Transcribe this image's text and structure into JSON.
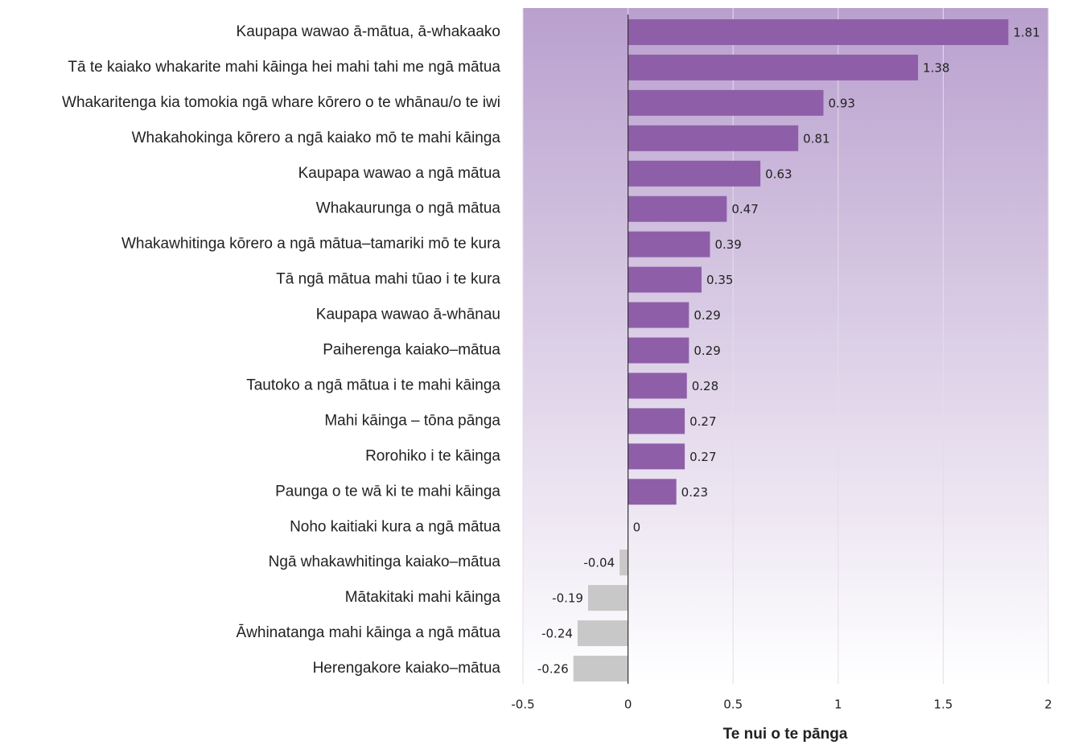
{
  "chart_data": {
    "type": "bar",
    "orientation": "horizontal",
    "x_label": "Te nui o te pānga",
    "categories": [
      "Kaupapa wawao ā-mātua, ā-whakaako",
      "Tā te kaiako whakarite mahi kāinga hei mahi tahi me ngā mātua",
      "Whakaritenga kia tomokia ngā whare kōrero o te whānau/o te iwi",
      "Whakahokinga kōrero a ngā kaiako mō te mahi kāinga",
      "Kaupapa wawao a ngā mātua",
      "Whakaurunga o ngā mātua",
      "Whakawhitinga kōrero a ngā mātua–tamariki mō te kura",
      "Tā ngā mātua mahi tūao i te kura",
      "Kaupapa wawao ā-whānau",
      "Paiherenga kaiako–mātua",
      "Tautoko a ngā mātua i te mahi kāinga",
      "Mahi kāinga – tōna pānga",
      "Rorohiko i te kāinga",
      "Paunga o te wā ki te mahi kāinga",
      "Noho kaitiaki kura a ngā mātua",
      "Ngā whakawhitinga kaiako–mātua",
      "Mātakitaki mahi kāinga",
      "Āwhinatanga mahi kāinga a ngā mātua",
      "Herengakore kaiako–mātua"
    ],
    "values": [
      1.81,
      1.38,
      0.93,
      0.81,
      0.63,
      0.47,
      0.39,
      0.35,
      0.29,
      0.29,
      0.28,
      0.27,
      0.27,
      0.23,
      0,
      -0.04,
      -0.19,
      -0.24,
      -0.26
    ],
    "color": "#8e5fa8",
    "negative_color": "#c8c8c8",
    "xlim": [
      -0.5,
      2
    ],
    "xticks": [
      -0.5,
      0,
      0.5,
      1,
      1.5,
      2
    ],
    "grid": true
  }
}
